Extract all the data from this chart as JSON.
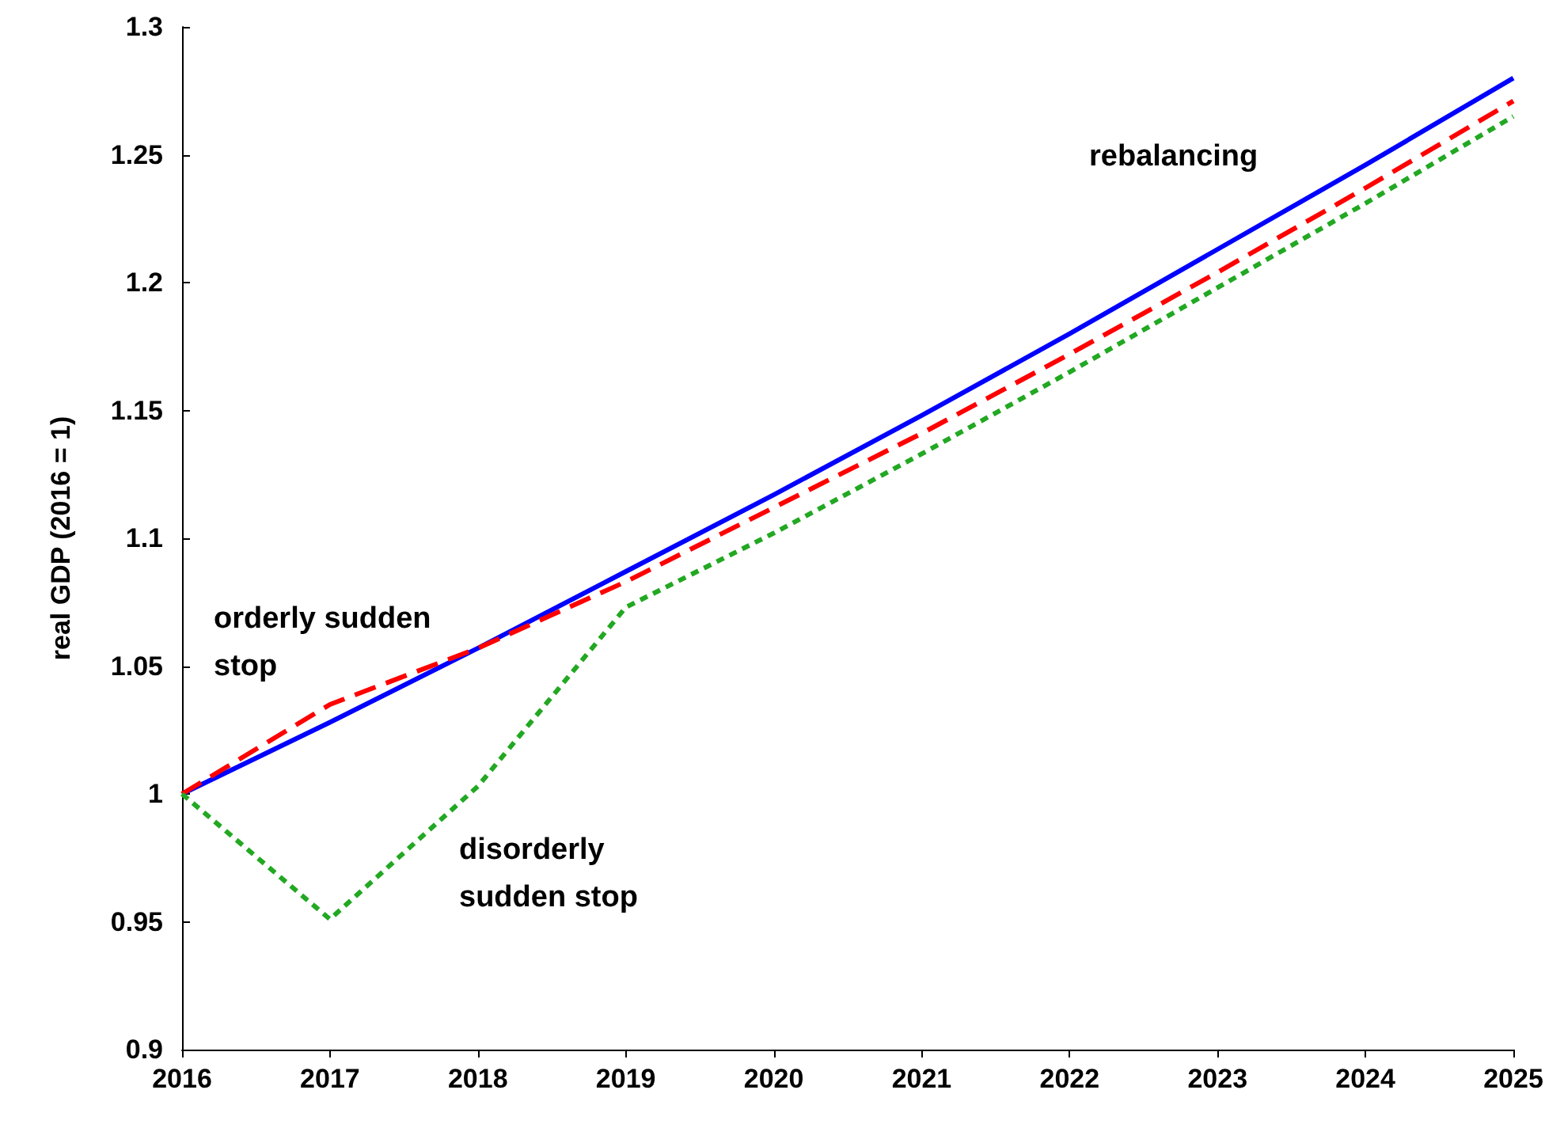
{
  "chart_data": {
    "type": "line",
    "ylabel": "real GDP (2016 = 1)",
    "x": [
      2016,
      2017,
      2018,
      2019,
      2020,
      2021,
      2022,
      2023,
      2024,
      2025
    ],
    "xlim": [
      2016,
      2025
    ],
    "xticks": [
      2016,
      2017,
      2018,
      2019,
      2020,
      2021,
      2022,
      2023,
      2024,
      2025
    ],
    "ylim": [
      0.9,
      1.3
    ],
    "yticks": [
      0.9,
      0.95,
      1,
      1.05,
      1.1,
      1.15,
      1.2,
      1.25,
      1.3
    ],
    "grid": false,
    "marker": "none",
    "series": [
      {
        "color": "#0000ff",
        "line_style": "solid",
        "values": [
          1.0,
          1.028,
          1.057,
          1.087,
          1.117,
          1.148,
          1.18,
          1.213,
          1.246,
          1.28
        ]
      },
      {
        "color": "#ff0000",
        "line_style": "dashed",
        "values": [
          1.0,
          1.035,
          1.057,
          1.083,
          1.112,
          1.141,
          1.172,
          1.204,
          1.237,
          1.271
        ]
      },
      {
        "color": "#22a822",
        "line_style": "dotted",
        "values": [
          1.0,
          0.951,
          1.003,
          1.073,
          1.102,
          1.133,
          1.165,
          1.198,
          1.231,
          1.265
        ]
      }
    ],
    "annotations": [
      "rebalancing",
      "orderly sudden stop",
      "disorderly sudden stop"
    ]
  }
}
